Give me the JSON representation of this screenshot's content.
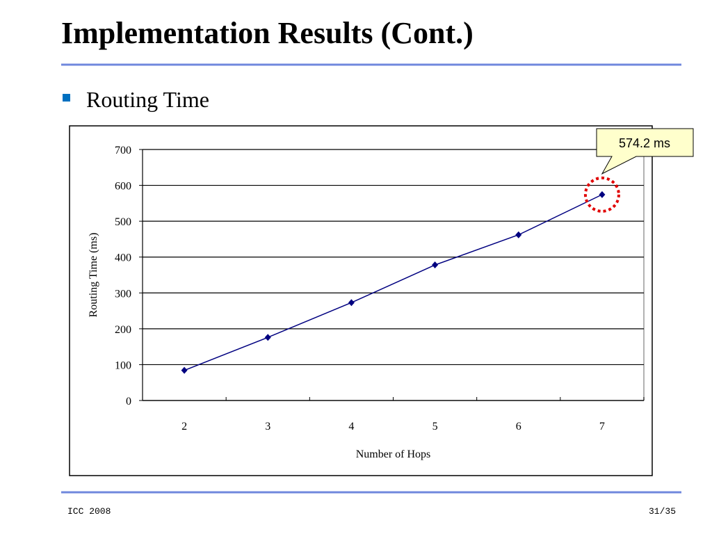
{
  "slide": {
    "title": "Implementation Results (Cont.)",
    "bullet": "Routing Time",
    "footer_left": "ICC  2008",
    "footer_right": "31/35"
  },
  "chart_data": {
    "type": "line",
    "x_label": "Number of Hops",
    "y_label": "Routing Time (ms)",
    "categories": [
      "2",
      "3",
      "4",
      "5",
      "6",
      "7"
    ],
    "series": [
      {
        "name": "Routing Time",
        "color": "#000080",
        "values": [
          84,
          176,
          273,
          378,
          462,
          574.2
        ]
      }
    ],
    "ylim": [
      0,
      700
    ],
    "yticks": [
      0,
      100,
      200,
      300,
      400,
      500,
      600,
      700
    ],
    "grid": true,
    "annotation": "574.2 ms"
  }
}
